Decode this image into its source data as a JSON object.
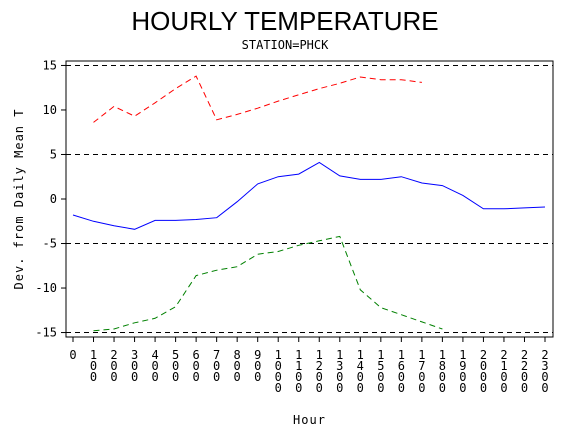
{
  "chart_data": {
    "type": "line",
    "title": "HOURLY TEMPERATURE",
    "subtitle": "STATION=PHCK",
    "xlabel": "Hour",
    "ylabel": "Dev. from Daily Mean T",
    "x": [
      0,
      100,
      200,
      300,
      400,
      500,
      600,
      700,
      800,
      900,
      1000,
      1100,
      1200,
      1300,
      1400,
      1500,
      1600,
      1700,
      1800,
      1900,
      2000,
      2100,
      2200,
      2300
    ],
    "x_tick_labels": [
      "0",
      "100",
      "200",
      "300",
      "400",
      "500",
      "600",
      "700",
      "800",
      "900",
      "1000",
      "1100",
      "1200",
      "1300",
      "1400",
      "1500",
      "1600",
      "1700",
      "1800",
      "1900",
      "2000",
      "2100",
      "2200",
      "2300"
    ],
    "xlim": [
      0,
      2300
    ],
    "ylim": [
      -15.5,
      15.5
    ],
    "y_ticks": [
      -15,
      -10,
      -5,
      0,
      5,
      10,
      15
    ],
    "reference_lines": [
      15,
      5,
      -5,
      -15
    ],
    "grid": false,
    "series": [
      {
        "color": "#ff0000",
        "dash": "dashed",
        "x": [
          100,
          200,
          300,
          400,
          500,
          600,
          700,
          800,
          900,
          1000,
          1100,
          1200,
          1300,
          1400,
          1500,
          1600,
          1700
        ],
        "values": [
          8.6,
          10.4,
          9.3,
          10.8,
          12.4,
          13.8,
          8.9,
          9.5,
          10.2,
          11.0,
          11.7,
          12.4,
          13.0,
          13.7,
          13.4,
          13.4,
          13.1
        ]
      },
      {
        "color": "#0000ff",
        "dash": "solid",
        "x": [
          0,
          100,
          200,
          300,
          400,
          500,
          600,
          700,
          800,
          900,
          1000,
          1100,
          1200,
          1300,
          1400,
          1500,
          1600,
          1700,
          1800,
          1900,
          2000,
          2100,
          2200,
          2300
        ],
        "values": [
          -1.8,
          -2.5,
          -3.0,
          -3.4,
          -2.4,
          -2.4,
          -2.3,
          -2.1,
          -0.3,
          1.7,
          2.5,
          2.8,
          4.1,
          2.6,
          2.2,
          2.2,
          2.5,
          1.8,
          1.5,
          0.4,
          -1.1,
          -1.1,
          -1.0,
          -0.9
        ]
      },
      {
        "color": "#008000",
        "dash": "dashed",
        "x": [
          100,
          200,
          300,
          400,
          500,
          600,
          700,
          800,
          900,
          1000,
          1100,
          1200,
          1300,
          1400,
          1500,
          1600,
          1700,
          1800
        ],
        "values": [
          -14.8,
          -14.6,
          -13.9,
          -13.4,
          -12.1,
          -8.6,
          -8.0,
          -7.6,
          -6.2,
          -5.9,
          -5.2,
          -4.7,
          -4.2,
          -10.2,
          -12.2,
          -13.0,
          -13.8,
          -14.6
        ]
      }
    ]
  }
}
